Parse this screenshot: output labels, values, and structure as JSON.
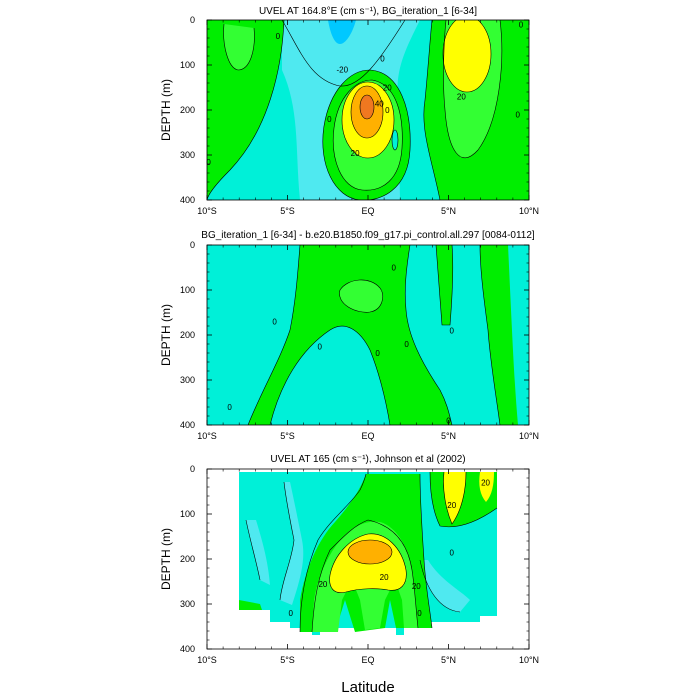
{
  "figure": {
    "xlabel": "Latitude"
  },
  "colors": {
    "cyan": "#00ffff",
    "aqua": "#00f0d8",
    "cyan_light": "#4fe9f0",
    "green": "#00ee00",
    "green_light": "#33ff33",
    "green_dark": "#00cc00",
    "yellow": "#ffff00",
    "orange": "#ffb000",
    "orange_dark": "#f07820"
  },
  "chart_data": [
    {
      "type": "heatmap",
      "title": "UVEL AT 164.8°E (cm s⁻¹), BG_iteration_1 [6-34]",
      "ylabel": "DEPTH (m)",
      "xlabel": "",
      "x_ticks": [
        "10°S",
        "5°S",
        "EQ",
        "5°N",
        "10°N"
      ],
      "x_range": [
        -10,
        10
      ],
      "y_ticks": [
        "0",
        "100",
        "200",
        "300",
        "400"
      ],
      "y_range": [
        0,
        400
      ],
      "contour_labels": [
        {
          "text": "0",
          "x": 1.2,
          "y": 200
        },
        {
          "text": "0",
          "x": -5.6,
          "y": 35
        },
        {
          "text": "-20",
          "x": -1.6,
          "y": 110
        },
        {
          "text": "0",
          "x": -2.4,
          "y": 220
        },
        {
          "text": "20",
          "x": 1.2,
          "y": 150
        },
        {
          "text": "40",
          "x": 0.7,
          "y": 185
        },
        {
          "text": "20",
          "x": -0.8,
          "y": 295
        },
        {
          "text": "0",
          "x": -9.9,
          "y": 315
        },
        {
          "text": "0",
          "x": 0.9,
          "y": 85
        },
        {
          "text": "20",
          "x": 5.8,
          "y": 170
        },
        {
          "text": "0",
          "x": 9.3,
          "y": 210
        },
        {
          "text": "0",
          "x": 9.5,
          "y": 10
        }
      ]
    },
    {
      "type": "heatmap",
      "title": "BG_iteration_1 [6-34] - b.e20.B1850.f09_g17.pi_control.all.297 [0084-0112]",
      "ylabel": "DEPTH (m)",
      "xlabel": "",
      "x_ticks": [
        "10°S",
        "5°S",
        "EQ",
        "5°N",
        "10°N"
      ],
      "x_range": [
        -10,
        10
      ],
      "y_ticks": [
        "0",
        "100",
        "200",
        "300",
        "400"
      ],
      "y_range": [
        0,
        400
      ],
      "contour_labels": [
        {
          "text": "0",
          "x": -5.8,
          "y": 170
        },
        {
          "text": "0",
          "x": -3.0,
          "y": 225
        },
        {
          "text": "0",
          "x": -8.6,
          "y": 360
        },
        {
          "text": "0",
          "x": 0.6,
          "y": 240
        },
        {
          "text": "0",
          "x": 2.4,
          "y": 220
        },
        {
          "text": "0",
          "x": 1.6,
          "y": 50
        },
        {
          "text": "0",
          "x": 5.2,
          "y": 190
        },
        {
          "text": "0",
          "x": 5.0,
          "y": 390
        }
      ]
    },
    {
      "type": "heatmap",
      "title": "UVEL AT 165 (cm s⁻¹), Johnson et al (2002)",
      "ylabel": "DEPTH (m)",
      "xlabel": "Latitude",
      "x_ticks": [
        "10°S",
        "5°S",
        "EQ",
        "5°N",
        "10°N"
      ],
      "x_range": [
        -10,
        10
      ],
      "y_ticks": [
        "0",
        "100",
        "200",
        "300",
        "400"
      ],
      "y_range": [
        0,
        400
      ],
      "contour_labels": [
        {
          "text": "20",
          "x": 7.3,
          "y": 30
        },
        {
          "text": "20",
          "x": 5.2,
          "y": 80
        },
        {
          "text": "0",
          "x": 5.2,
          "y": 185
        },
        {
          "text": "20",
          "x": -2.8,
          "y": 255
        },
        {
          "text": "20",
          "x": 3.0,
          "y": 260
        },
        {
          "text": "20",
          "x": 1.0,
          "y": 240
        },
        {
          "text": "0",
          "x": 3.2,
          "y": 320
        },
        {
          "text": "0",
          "x": -4.8,
          "y": 320
        }
      ]
    }
  ]
}
